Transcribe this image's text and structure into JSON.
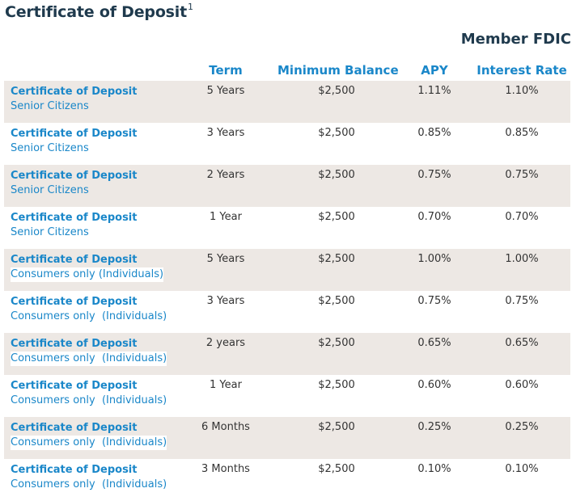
{
  "header": {
    "title": "Certificate of Deposit",
    "footnote_marker": "1",
    "member_label": "Member FDIC"
  },
  "table": {
    "columns": [
      "",
      "Term",
      "Minimum Balance",
      "APY",
      "Interest Rate"
    ],
    "rows": [
      {
        "product": "Certificate of Deposit",
        "segment": "Senior Citizens",
        "term": "5 Years",
        "min_balance": "$2,500",
        "apy": "1.11%",
        "rate": "1.10%"
      },
      {
        "product": "Certificate of Deposit",
        "segment": "Senior Citizens",
        "term": "3 Years",
        "min_balance": "$2,500",
        "apy": "0.85%",
        "rate": "0.85%"
      },
      {
        "product": "Certificate of Deposit",
        "segment": "Senior Citizens",
        "term": "2 Years",
        "min_balance": "$2,500",
        "apy": "0.75%",
        "rate": "0.75%"
      },
      {
        "product": "Certificate of Deposit",
        "segment": "Senior Citizens",
        "term": "1 Year",
        "min_balance": "$2,500",
        "apy": "0.70%",
        "rate": "0.70%"
      },
      {
        "product": "Certificate of Deposit",
        "segment": "Consumers only (Individuals)",
        "term": "5 Years",
        "min_balance": "$2,500",
        "apy": "1.00%",
        "rate": "1.00%"
      },
      {
        "product": "Certificate of Deposit",
        "segment": "Consumers only  (Individuals)",
        "term": "3 Years",
        "min_balance": "$2,500",
        "apy": "0.75%",
        "rate": "0.75%"
      },
      {
        "product": "Certificate of Deposit",
        "segment": "Consumers only  (Individuals)",
        "term": "2 years",
        "min_balance": "$2,500",
        "apy": "0.65%",
        "rate": "0.65%"
      },
      {
        "product": "Certificate of Deposit",
        "segment": "Consumers only  (Individuals)",
        "term": "1 Year",
        "min_balance": "$2,500",
        "apy": "0.60%",
        "rate": "0.60%"
      },
      {
        "product": "Certificate of Deposit",
        "segment": "Consumers only  (Individuals)",
        "term": "6 Months",
        "min_balance": "$2,500",
        "apy": "0.25%",
        "rate": "0.25%"
      },
      {
        "product": "Certificate of Deposit",
        "segment": "Consumers only  (Individuals)",
        "term": "3 Months",
        "min_balance": "$2,500",
        "apy": "0.10%",
        "rate": "0.10%"
      }
    ]
  },
  "colors": {
    "accent": "#1a87c9",
    "heading": "#1f3a4d",
    "stripe": "#ede8e4",
    "text": "#333333"
  }
}
